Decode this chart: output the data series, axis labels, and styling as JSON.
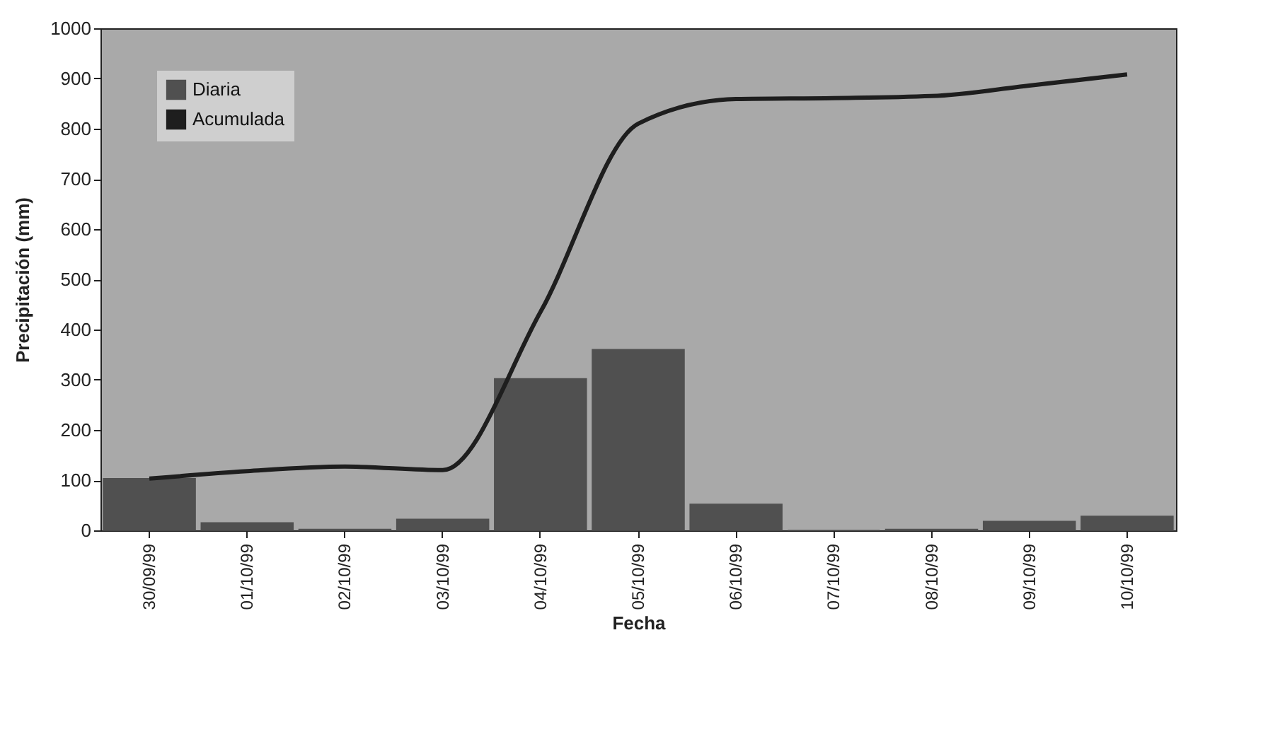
{
  "chart_data": {
    "type": "bar",
    "xlabel": "Fecha",
    "ylabel": "Precipitación (mm)",
    "categories": [
      "30/09/99",
      "01/10/99",
      "02/10/99",
      "03/10/99",
      "04/10/99",
      "05/10/99",
      "06/10/99",
      "07/10/99",
      "08/10/99",
      "09/10/99",
      "10/10/99"
    ],
    "series": [
      {
        "name": "Diaria",
        "color": "#505050",
        "values": [
          103,
          15,
          2,
          22,
          302,
          360,
          52,
          0,
          2,
          18,
          28
        ]
      },
      {
        "name": "Acumulada",
        "type": "line",
        "color": "#1e1e1e",
        "values": [
          103,
          118,
          127,
          120,
          435,
          810,
          859,
          861,
          865,
          886,
          908
        ]
      }
    ],
    "ylim": [
      0,
      1000
    ],
    "yticks": [
      0,
      100,
      200,
      300,
      400,
      500,
      600,
      700,
      800,
      900,
      1000
    ],
    "grid": false,
    "legend": "top left",
    "marker": "none",
    "line_style": "solid"
  }
}
